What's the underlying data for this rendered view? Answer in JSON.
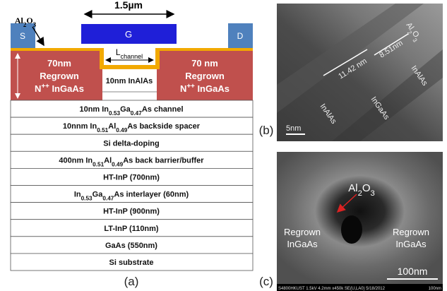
{
  "panel_a": {
    "gate_width": "1.5µm",
    "oxide": [
      "Al",
      {
        "sub": "2"
      },
      "O",
      {
        "sub": "3"
      }
    ],
    "source": "S",
    "gate": "G",
    "drain": "D",
    "channel_length": [
      "L",
      {
        "sub": "channel"
      }
    ],
    "regrown_left": {
      "thickness": "70nm",
      "line2": "Regrown",
      "line3": [
        "N",
        {
          "sup": "++"
        },
        " InGaAs"
      ]
    },
    "regrown_right": {
      "thickness": "70 nm",
      "line2": "Regrown",
      "line3": [
        "N",
        {
          "sup": "++"
        },
        " InGaAs"
      ]
    },
    "barrier": "10nm InAlAs",
    "layers": [
      [
        "10nm In",
        {
          "sub": "0.53"
        },
        "Ga",
        {
          "sub": "0.47"
        },
        "As channel"
      ],
      [
        "10nnm In",
        {
          "sub": "0.51"
        },
        "Al",
        {
          "sub": "0.49"
        },
        "As backside spacer"
      ],
      "Si delta-doping",
      [
        "400nm In",
        {
          "sub": "0.51"
        },
        "Al",
        {
          "sub": "0.49"
        },
        "As  back barrier/buffer"
      ],
      "HT-InP (700nm)",
      [
        "In",
        {
          "sub": "0.53"
        },
        "Ga",
        {
          "sub": "0.47"
        },
        "As interlayer (60nm)"
      ],
      "HT-InP (900nm)",
      "LT-InP (110nm)",
      "GaAs (550nm)",
      "Si substrate"
    ],
    "label": "(a)"
  },
  "panel_b": {
    "oxide": [
      "Al",
      {
        "sub": "2"
      },
      "O",
      {
        "sub": "3"
      }
    ],
    "measure_1": "11.42 nm",
    "measure_2": "8.51nm",
    "layer_upper": "InAlAs",
    "layer_middle": "InGaAs",
    "layer_lower": "InAlAs",
    "scale": "5nm",
    "label": "(b)"
  },
  "panel_c": {
    "oxide": [
      "Al",
      {
        "sub": "2"
      },
      "O",
      {
        "sub": "3"
      }
    ],
    "left_line1": "Regrown",
    "left_line2": "InGaAs",
    "right_line1": "Regrown",
    "right_line2": "InGaAs",
    "scale": "100nm",
    "info": "S4800HKUST 1.5kV 4.2mm x450k SE(U,LA0) 5/18/2012",
    "info_scale": "100nm",
    "label": "(c)"
  }
}
